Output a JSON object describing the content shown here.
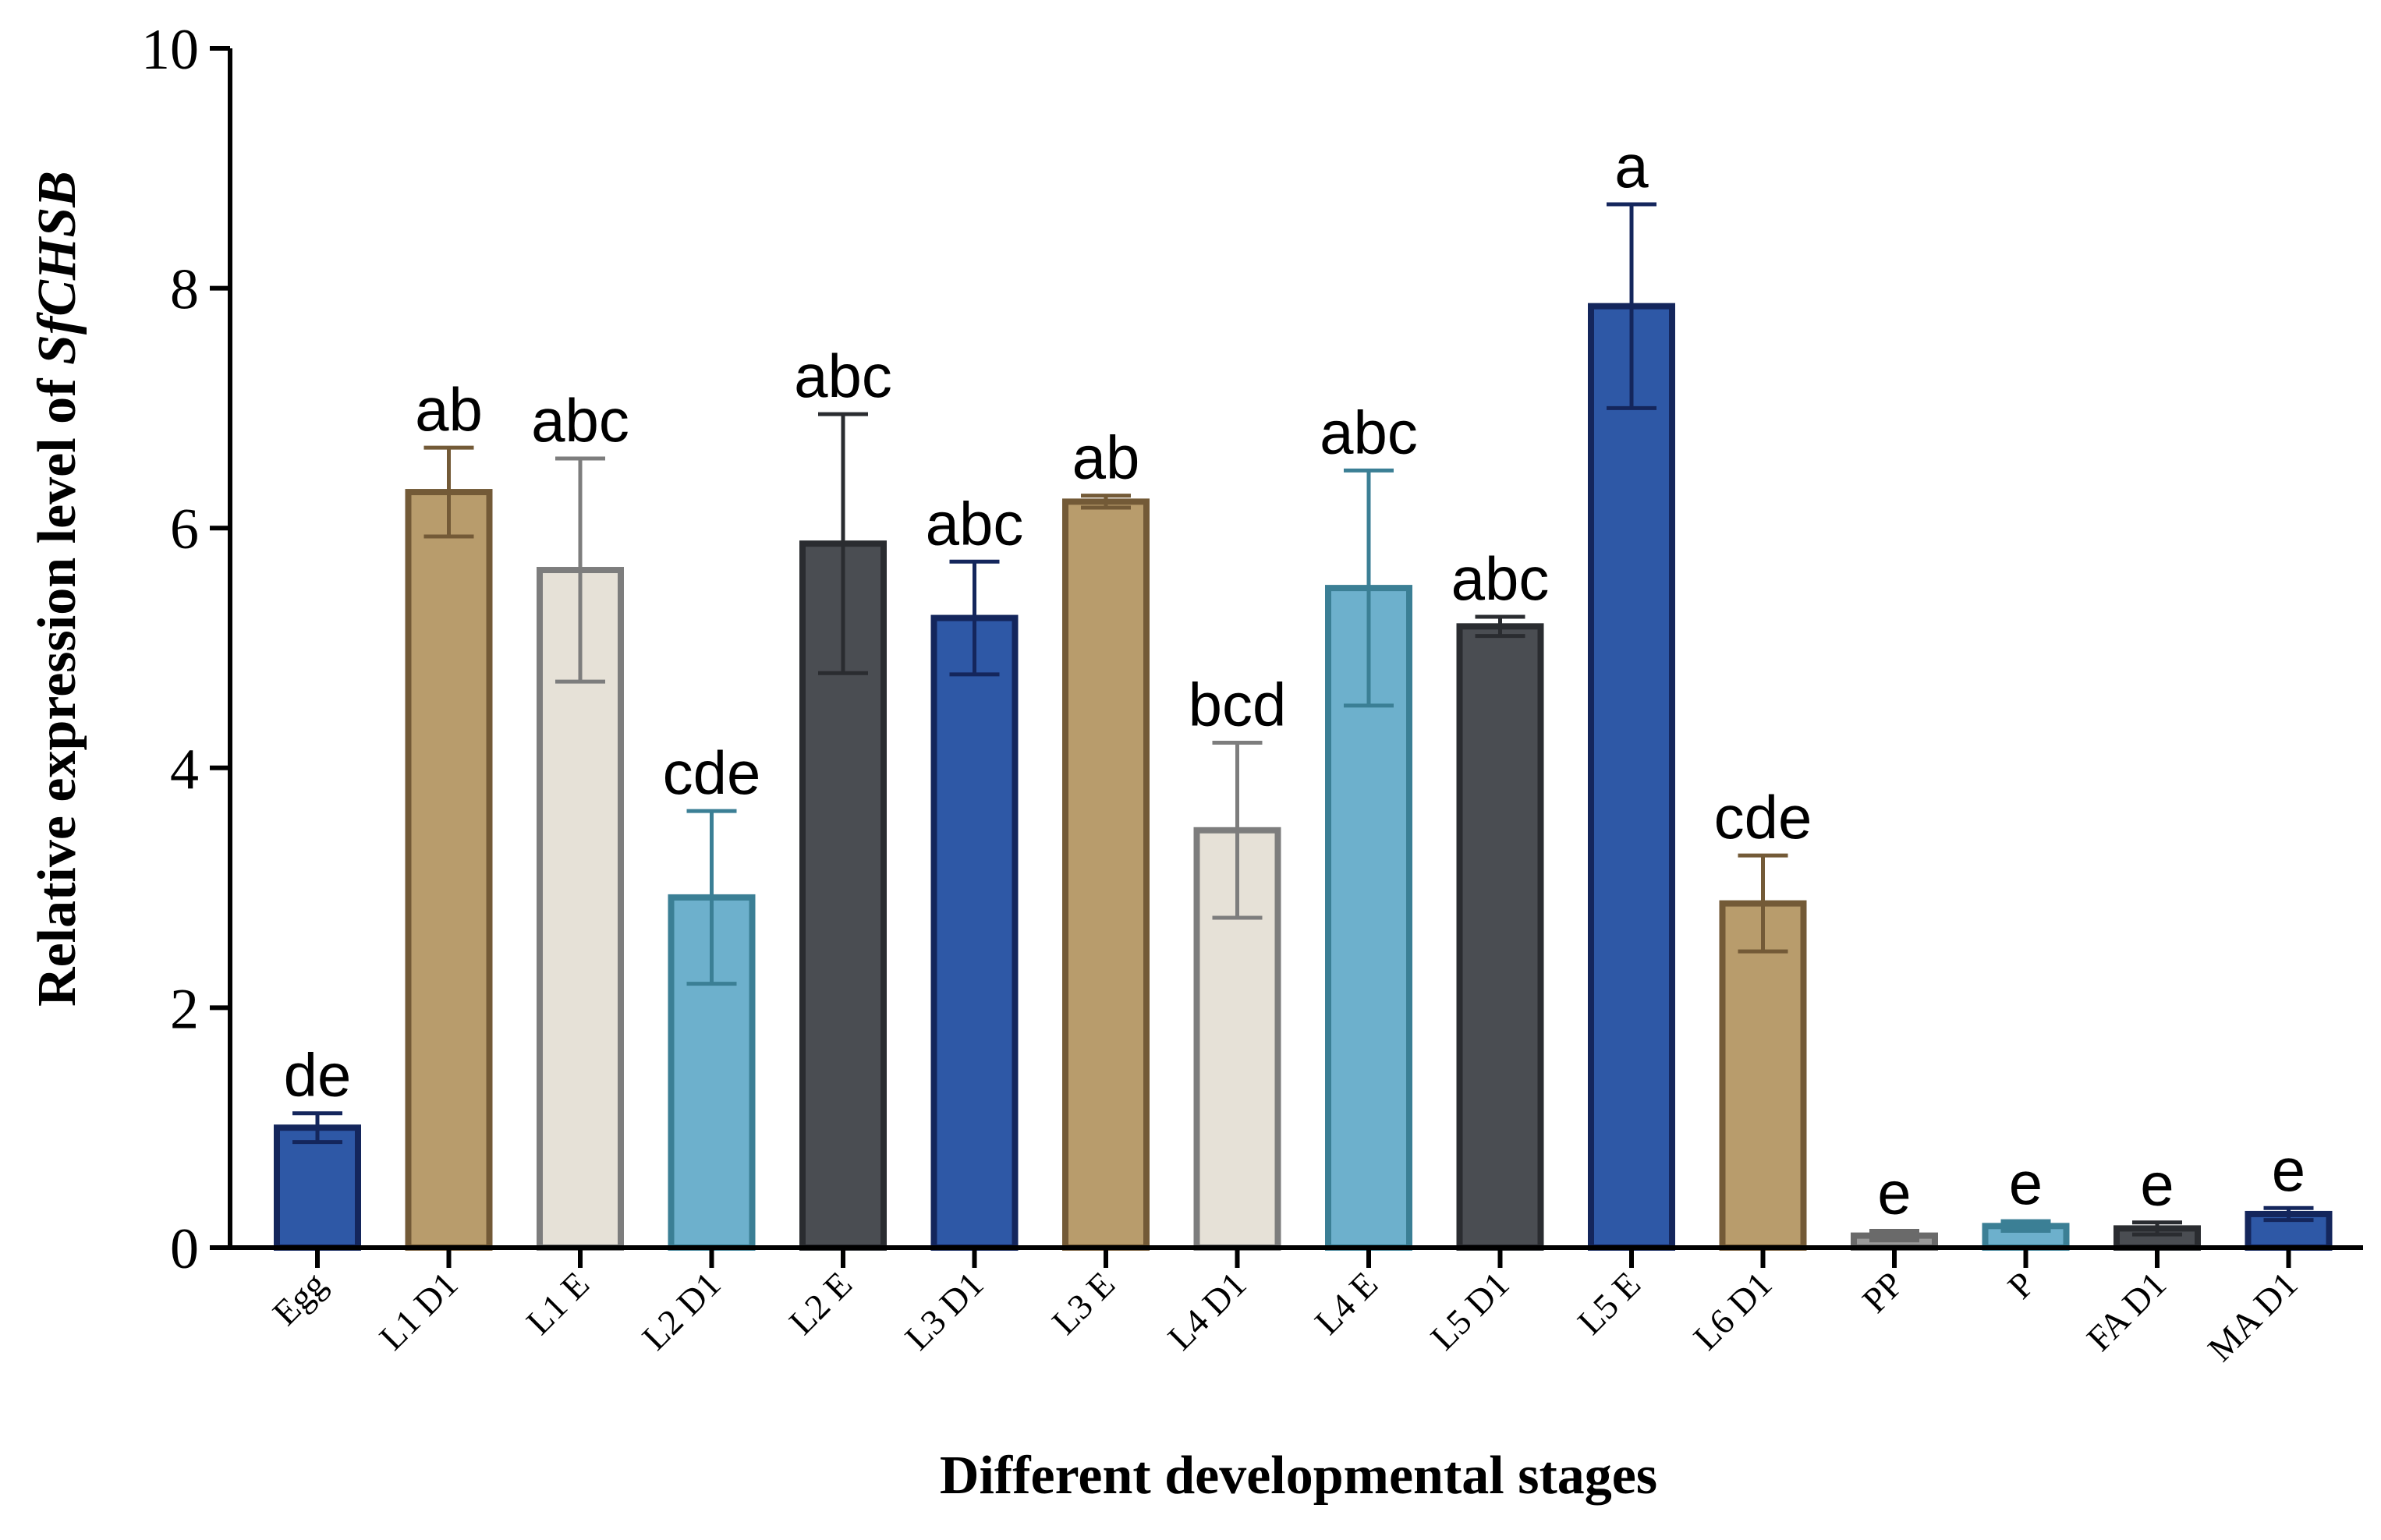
{
  "chart_data": {
    "type": "bar",
    "title": "",
    "xlabel": "Different developmental stages",
    "ylabel": {
      "prefix": "Relative expression level of ",
      "gene": "SfCHSB"
    },
    "ylim": [
      0,
      10
    ],
    "yticks": [
      "0",
      "2",
      "4",
      "6",
      "8",
      "10"
    ],
    "grid": false,
    "legend": "none",
    "categories": [
      "Egg",
      "L1 D1",
      "L1 E",
      "L2 D1",
      "L2 E",
      "L3 D1",
      "L3 E",
      "L4 D1",
      "L4 E",
      "L5 D1",
      "L5 E",
      "L6 D1",
      "PP",
      "P",
      "FA D1",
      "MA D1"
    ],
    "values": [
      1.0,
      6.3,
      5.65,
      2.92,
      5.87,
      5.25,
      6.22,
      3.48,
      5.5,
      5.18,
      7.85,
      2.87,
      0.1,
      0.18,
      0.16,
      0.28
    ],
    "errors": [
      0.12,
      0.37,
      0.93,
      0.72,
      1.08,
      0.47,
      0.05,
      0.73,
      0.98,
      0.08,
      0.85,
      0.4,
      0.04,
      0.04,
      0.05,
      0.05
    ],
    "significance": [
      "de",
      "ab",
      "abc",
      "cde",
      "abc",
      "abc",
      "ab",
      "bcd",
      "abc",
      "abc",
      "a",
      "cde",
      "e",
      "e",
      "e",
      "e"
    ],
    "colors": {
      "fill": [
        "#2e58a6",
        "#b89c6c",
        "#e6e1d7",
        "#6db0cc",
        "#4a4d52",
        "#2e58a6",
        "#b89c6c",
        "#e6e1d7",
        "#6db0cc",
        "#4a4d52",
        "#2e58a6",
        "#b89c6c",
        "#9a9a9a",
        "#6db0cc",
        "#4a4d52",
        "#2e58a6"
      ],
      "stroke": [
        "#14265c",
        "#735a37",
        "#7d7d7d",
        "#3b7f95",
        "#2a2c30",
        "#14265c",
        "#735a37",
        "#7d7d7d",
        "#3b7f95",
        "#2a2c30",
        "#14265c",
        "#735a37",
        "#6a6a6a",
        "#3b7f95",
        "#2a2c30",
        "#14265c"
      ]
    }
  }
}
